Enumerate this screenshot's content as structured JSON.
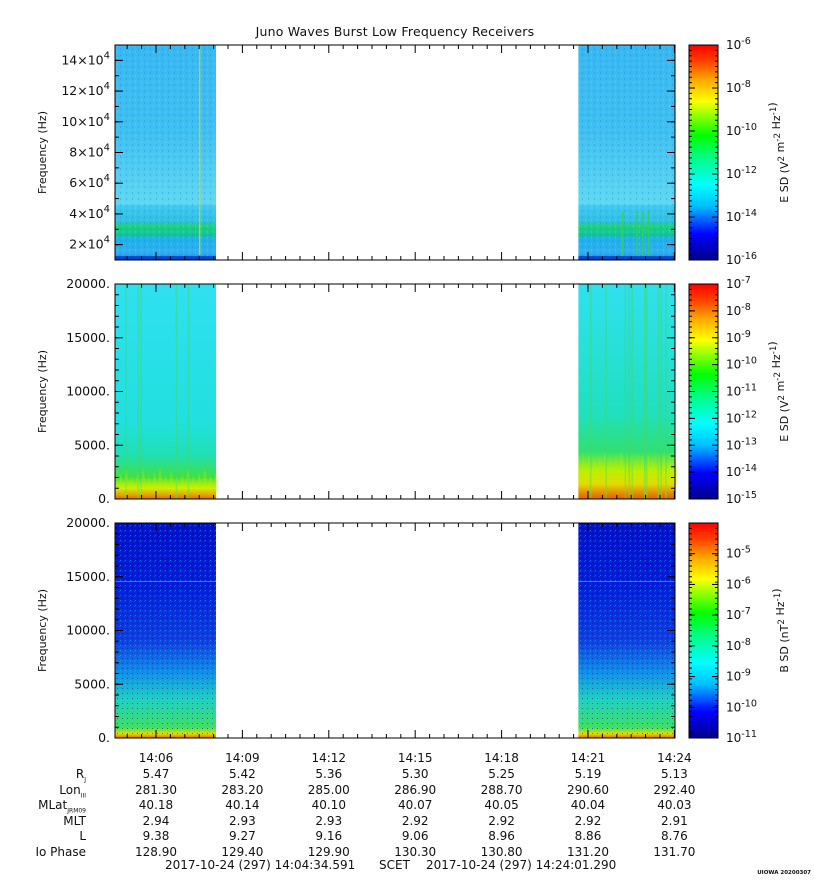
{
  "title": "Juno Waves Burst Low Frequency Receivers",
  "footer": {
    "start": "2017-10-24 (297) 14:04:34.591",
    "frame": "SCET",
    "end": "2017-10-24 (297) 14:24:01.290",
    "stamp": "UIOWA 20200307"
  },
  "colors": {
    "spectrum": [
      "#00008b",
      "#0000ff",
      "#00bfff",
      "#00ffff",
      "#00ff80",
      "#00ff00",
      "#80ff00",
      "#ffff00",
      "#ffa500",
      "#ff4500",
      "#ff0000"
    ]
  },
  "ephemeris": {
    "times": [
      "14:06",
      "14:09",
      "14:12",
      "14:15",
      "14:18",
      "14:21",
      "14:24"
    ],
    "rows": [
      {
        "label": "R",
        "sub": "J",
        "values": [
          "5.47",
          "5.42",
          "5.36",
          "5.30",
          "5.25",
          "5.19",
          "5.13"
        ]
      },
      {
        "label": "Lon",
        "sub": "III",
        "values": [
          "281.30",
          "283.20",
          "285.00",
          "286.90",
          "288.70",
          "290.60",
          "292.40"
        ]
      },
      {
        "label": "MLat",
        "sub": "JRM09",
        "values": [
          "40.18",
          "40.14",
          "40.10",
          "40.07",
          "40.05",
          "40.04",
          "40.03"
        ]
      },
      {
        "label": "MLT",
        "sub": "",
        "values": [
          "2.94",
          "2.93",
          "2.93",
          "2.92",
          "2.92",
          "2.92",
          "2.91"
        ]
      },
      {
        "label": "L",
        "sub": "",
        "values": [
          "9.38",
          "9.27",
          "9.16",
          "9.06",
          "8.96",
          "8.86",
          "8.76"
        ]
      },
      {
        "label": "Io Phase",
        "sub": "",
        "values": [
          "128.90",
          "129.40",
          "129.90",
          "130.30",
          "130.80",
          "131.20",
          "131.70"
        ]
      }
    ]
  },
  "chart_data": [
    {
      "type": "heatmap",
      "panel": "top",
      "ylabel": "Frequency (Hz)",
      "yticks": [
        "2×10^4",
        "4×10^4",
        "6×10^4",
        "8×10^4",
        "10×10^4",
        "12×10^4",
        "14×10^4"
      ],
      "ylim": [
        10000,
        150000
      ],
      "colorbar_label": "E SD (V^2 m^-2 Hz^-1)",
      "colorbar_ticks": [
        "10^-6",
        "10^-8",
        "10^-10",
        "10^-12",
        "10^-14",
        "10^-16"
      ],
      "data_segments": [
        [
          "14:04:35",
          "14:08:05"
        ],
        [
          "14:20:40",
          "14:24:01"
        ]
      ],
      "features": [
        "enhanced band near 3×10^4 Hz",
        "weak band near 4.5×10^4 Hz"
      ]
    },
    {
      "type": "heatmap",
      "panel": "middle",
      "ylabel": "Frequency (Hz)",
      "yticks": [
        "0.",
        "5000.",
        "10000.",
        "15000.",
        "20000."
      ],
      "ylim": [
        0,
        20000
      ],
      "colorbar_label": "E SD (V^2 m^-2 Hz^-1)",
      "colorbar_ticks": [
        "10^-7",
        "10^-8",
        "10^-9",
        "10^-10",
        "10^-11",
        "10^-12",
        "10^-13",
        "10^-14",
        "10^-15"
      ],
      "data_segments": [
        [
          "14:04:35",
          "14:08:05"
        ],
        [
          "14:20:40",
          "14:24:01"
        ]
      ],
      "features": [
        "intense emission below ~3000 Hz",
        "vertical broadband bursts"
      ]
    },
    {
      "type": "heatmap",
      "panel": "bottom",
      "ylabel": "Frequency (Hz)",
      "yticks": [
        "0.",
        "5000.",
        "10000.",
        "15000.",
        "20000."
      ],
      "ylim": [
        0,
        20000
      ],
      "colorbar_label": "B SD (nT^2 Hz^-1)",
      "colorbar_ticks": [
        "10^-5",
        "10^-6",
        "10^-7",
        "10^-8",
        "10^-9",
        "10^-10",
        "10^-11"
      ],
      "data_segments": [
        [
          "14:04:35",
          "14:08:05"
        ],
        [
          "14:20:40",
          "14:24:01"
        ]
      ],
      "features": [
        "enhanced intensity below ~5000 Hz",
        "faint line near 14500 Hz"
      ]
    }
  ]
}
